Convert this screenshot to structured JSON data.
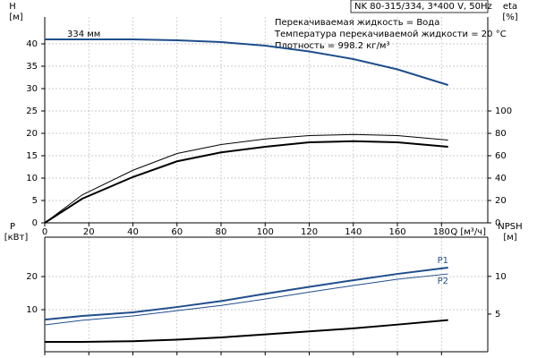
{
  "chart_data": [
    {
      "type": "line",
      "title": "NK 80-315/334, 3*400 V, 50Hz",
      "annotations": [
        "Перекачиваемая жидкость = Вода",
        "Температура перекачиваемой жидкости = 20 °C",
        "Плотность = 998.2 кг/м³",
        "334 мм"
      ],
      "ylabel": [
        "H",
        "[м]"
      ],
      "y2label": [
        "eta",
        "[%]"
      ],
      "xlabel": "Q [м³/ч]",
      "x": [
        0,
        17,
        40,
        60,
        80,
        100,
        120,
        140,
        160,
        183
      ],
      "xlim": [
        0,
        201
      ],
      "xticks": [
        0,
        20,
        40,
        60,
        80,
        100,
        120,
        140,
        160,
        180
      ],
      "ylim": [
        0,
        46
      ],
      "yticks": [
        0,
        5,
        10,
        15,
        20,
        25,
        30,
        35,
        40
      ],
      "y2lim": [
        0,
        184
      ],
      "y2ticks": [
        0,
        20,
        40,
        60,
        80,
        100
      ],
      "grid": true,
      "series": [
        {
          "color": "#1f4e8c",
          "width": 2,
          "values": [
            41,
            41,
            41,
            40.8,
            40.4,
            39.6,
            38.3,
            36.6,
            34.3,
            30.8
          ]
        },
        {
          "color": "#000000",
          "width": 1,
          "axis": "y2",
          "values": [
            0,
            25,
            47,
            62,
            70,
            75,
            78,
            79,
            78,
            74
          ]
        },
        {
          "color": "#000000",
          "width": 2,
          "axis": "y2",
          "values": [
            0,
            21.6,
            41,
            55,
            63,
            68,
            72,
            73,
            72,
            68
          ]
        }
      ]
    },
    {
      "type": "line",
      "ylabel": [
        "P",
        "[кВт]"
      ],
      "y2label": [
        "NPSH",
        "[м]"
      ],
      "x": [
        0,
        17,
        40,
        60,
        80,
        100,
        120,
        140,
        160,
        183
      ],
      "xlim": [
        0,
        201
      ],
      "xticks": [
        0,
        20,
        40,
        60,
        80,
        100,
        120,
        140,
        160,
        180
      ],
      "ylim": [
        -2.7,
        31.9
      ],
      "yticks": [
        10,
        20
      ],
      "y2lim": [
        0,
        15.2
      ],
      "y2ticks": [
        5,
        10
      ],
      "grid": true,
      "series": [
        {
          "name": "P1",
          "color": "#1f4e8c",
          "width": 2,
          "values": [
            7.0,
            8.1,
            9.2,
            10.8,
            12.6,
            14.8,
            16.9,
            18.9,
            20.8,
            22.7
          ]
        },
        {
          "name": "P2",
          "color": "#1f4e8c",
          "width": 1,
          "values": [
            5.4,
            6.8,
            8.1,
            9.7,
            11.3,
            13.2,
            15.3,
            17.3,
            19.2,
            20.8
          ]
        },
        {
          "color": "#000000",
          "width": 2,
          "axis": "y2",
          "values": [
            1.3,
            1.3,
            1.4,
            1.6,
            1.9,
            2.3,
            2.7,
            3.1,
            3.6,
            4.2
          ]
        }
      ]
    }
  ]
}
